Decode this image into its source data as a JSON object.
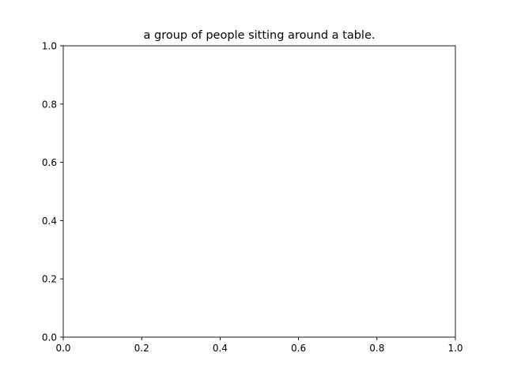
{
  "chart_data": {
    "type": "scatter",
    "title": "a group of people sitting around a table.",
    "xlabel": "",
    "ylabel": "",
    "xlim": [
      0.0,
      1.0
    ],
    "ylim": [
      0.0,
      1.0
    ],
    "xticks": [
      0.0,
      0.2,
      0.4,
      0.6,
      0.8,
      1.0
    ],
    "yticks": [
      0.0,
      0.2,
      0.4,
      0.6,
      0.8,
      1.0
    ],
    "xtick_labels": [
      "0.0",
      "0.2",
      "0.4",
      "0.6",
      "0.8",
      "1.0"
    ],
    "ytick_labels": [
      "0.0",
      "0.2",
      "0.4",
      "0.6",
      "0.8",
      "1.0"
    ],
    "series": [],
    "grid": false,
    "legend": "none"
  }
}
